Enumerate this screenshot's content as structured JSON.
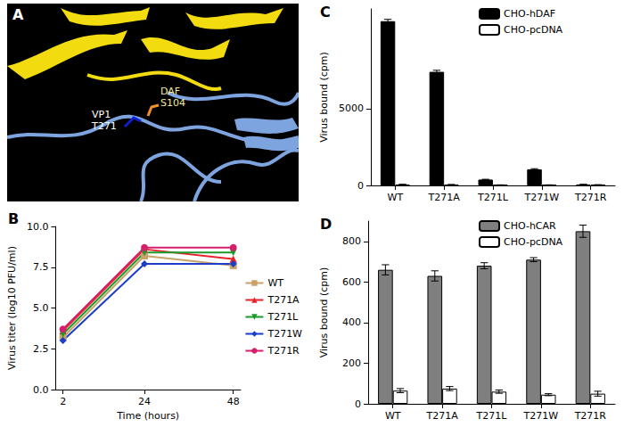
{
  "panel_a": {
    "type": "structure",
    "title": "A",
    "annotations": [
      {
        "text": "VP1 T271",
        "color": "#ffffff"
      },
      {
        "text": "DAF S104",
        "color": "#f3e9a0"
      }
    ]
  },
  "chart_data": [
    {
      "type": "line",
      "title": "B",
      "x_label": "Time (hours)",
      "y_label": "Virus titer (log10 PFU/ml)",
      "x": [
        2,
        24,
        48
      ],
      "xlim": [
        0,
        50
      ],
      "xticks": [
        2,
        24,
        48
      ],
      "ylim": [
        0,
        10
      ],
      "yticks": [
        {
          "value": 0,
          "label": "0.0"
        },
        {
          "value": 2.5,
          "label": "2.5"
        },
        {
          "value": 5,
          "label": "5.0"
        },
        {
          "value": 7.5,
          "label": "7.5"
        },
        {
          "value": 10,
          "label": "10.0"
        }
      ],
      "grid": false,
      "legend": "right",
      "series": [
        {
          "name": "WT",
          "color": "#c9a26b",
          "marker": "square",
          "values": [
            3.2,
            8.2,
            7.6
          ]
        },
        {
          "name": "T271A",
          "color": "#e8202a",
          "marker": "triangle",
          "values": [
            3.6,
            8.6,
            8.0
          ]
        },
        {
          "name": "T271L",
          "color": "#1a9a2a",
          "marker": "triangle-down",
          "values": [
            3.4,
            8.4,
            8.4
          ]
        },
        {
          "name": "T271W",
          "color": "#1a3ec8",
          "marker": "diamond",
          "values": [
            3.0,
            7.7,
            7.7
          ]
        },
        {
          "name": "T271R",
          "color": "#d4206c",
          "marker": "circle",
          "values": [
            3.7,
            8.7,
            8.7
          ]
        }
      ]
    },
    {
      "type": "bar",
      "title": "C",
      "y_label": "Virus bound (cpm)",
      "categories": [
        "WT",
        "T271A",
        "T271L",
        "T271W",
        "T271R"
      ],
      "ylim": [
        0,
        11500
      ],
      "yticks": [
        0,
        5000
      ],
      "grid": false,
      "legend": "top",
      "series": [
        {
          "name": "CHO-hDAF",
          "color": "#000000",
          "values": [
            10700,
            7400,
            380,
            1050,
            60
          ],
          "errors": [
            120,
            100,
            20,
            40,
            10
          ]
        },
        {
          "name": "CHO-pcDNA",
          "color": "#ffffff",
          "values": [
            60,
            50,
            30,
            30,
            40
          ],
          "errors": [
            10,
            10,
            8,
            8,
            8
          ]
        }
      ]
    },
    {
      "type": "bar",
      "title": "D",
      "y_label": "Virus bound (cpm)",
      "categories": [
        "WT",
        "T271A",
        "T271L",
        "T271W",
        "T271R"
      ],
      "ylim": [
        0,
        900
      ],
      "yticks": [
        0,
        200,
        400,
        600,
        800
      ],
      "grid": false,
      "legend": "top",
      "series": [
        {
          "name": "CHO-hCAR",
          "color": "#7f7f7f",
          "values": [
            660,
            630,
            680,
            710,
            850
          ],
          "errors": [
            25,
            25,
            15,
            10,
            30
          ]
        },
        {
          "name": "CHO-pcDNA",
          "color": "#ffffff",
          "values": [
            65,
            75,
            60,
            45,
            50
          ],
          "errors": [
            10,
            10,
            8,
            5,
            12
          ]
        }
      ]
    }
  ]
}
